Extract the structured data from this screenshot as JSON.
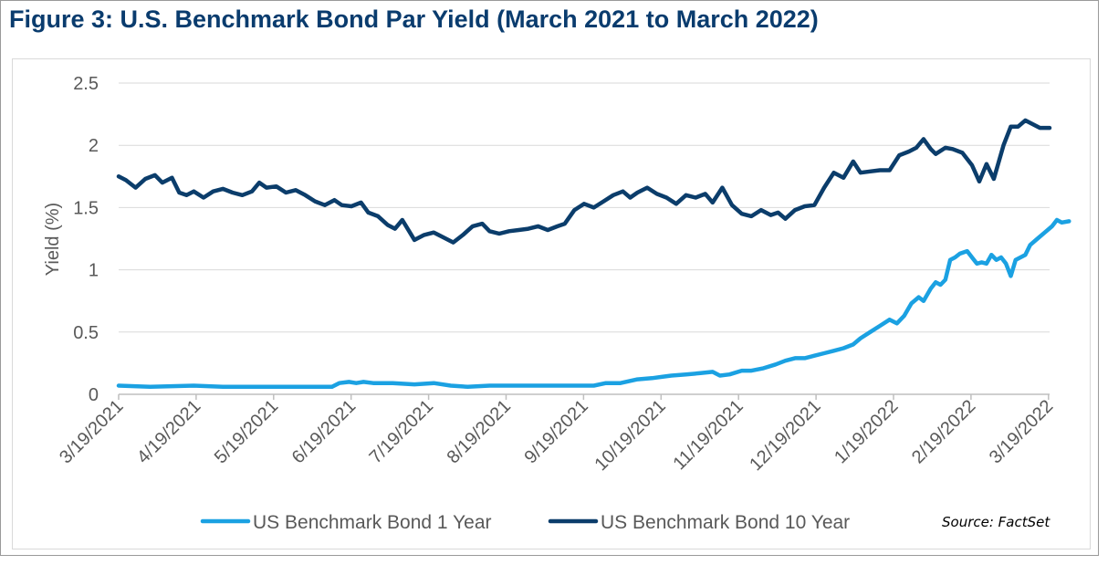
{
  "title": "Figure 3: U.S. Benchmark Bond Par Yield (March 2021 to March 2022)",
  "source": "Source: FactSet",
  "colors": {
    "title": "#0a3c6e",
    "series_1y": "#1ba1e2",
    "series_10y": "#0b3d6b",
    "axis_text": "#595959",
    "grid": "#d9d9d9"
  },
  "chart_data": {
    "type": "line",
    "ylabel": "Yield (%)",
    "xlabel": "",
    "ylim": [
      0,
      2.5
    ],
    "yticks": [
      "0",
      "0.5",
      "1",
      "1.5",
      "2",
      "2.5"
    ],
    "grid": true,
    "legend_position": "bottom",
    "x_ticks": [
      "3/19/2021",
      "4/19/2021",
      "5/19/2021",
      "6/19/2021",
      "7/19/2021",
      "8/19/2021",
      "9/19/2021",
      "10/19/2021",
      "11/19/2021",
      "12/19/2021",
      "1/19/2022",
      "2/19/2022",
      "3/19/2022"
    ],
    "series": [
      {
        "name": "US Benchmark Bond 1 Year",
        "points": [
          [
            "2021-03-19",
            0.07
          ],
          [
            "2021-04-01",
            0.06
          ],
          [
            "2021-04-19",
            0.07
          ],
          [
            "2021-05-01",
            0.06
          ],
          [
            "2021-05-19",
            0.06
          ],
          [
            "2021-06-01",
            0.06
          ],
          [
            "2021-06-15",
            0.06
          ],
          [
            "2021-06-18",
            0.09
          ],
          [
            "2021-06-22",
            0.1
          ],
          [
            "2021-06-25",
            0.09
          ],
          [
            "2021-06-28",
            0.1
          ],
          [
            "2021-07-02",
            0.09
          ],
          [
            "2021-07-10",
            0.09
          ],
          [
            "2021-07-19",
            0.08
          ],
          [
            "2021-07-27",
            0.09
          ],
          [
            "2021-08-03",
            0.07
          ],
          [
            "2021-08-10",
            0.06
          ],
          [
            "2021-08-19",
            0.07
          ],
          [
            "2021-09-01",
            0.07
          ],
          [
            "2021-09-19",
            0.07
          ],
          [
            "2021-10-01",
            0.07
          ],
          [
            "2021-10-06",
            0.09
          ],
          [
            "2021-10-12",
            0.09
          ],
          [
            "2021-10-19",
            0.12
          ],
          [
            "2021-10-25",
            0.13
          ],
          [
            "2021-10-29",
            0.14
          ],
          [
            "2021-11-02",
            0.15
          ],
          [
            "2021-11-08",
            0.16
          ],
          [
            "2021-11-14",
            0.17
          ],
          [
            "2021-11-19",
            0.18
          ],
          [
            "2021-11-22",
            0.15
          ],
          [
            "2021-11-26",
            0.16
          ],
          [
            "2021-12-01",
            0.19
          ],
          [
            "2021-12-05",
            0.19
          ],
          [
            "2021-12-10",
            0.21
          ],
          [
            "2021-12-15",
            0.24
          ],
          [
            "2021-12-19",
            0.27
          ],
          [
            "2021-12-23",
            0.29
          ],
          [
            "2021-12-27",
            0.29
          ],
          [
            "2021-12-31",
            0.31
          ],
          [
            "2022-01-04",
            0.33
          ],
          [
            "2022-01-08",
            0.35
          ],
          [
            "2022-01-12",
            0.37
          ],
          [
            "2022-01-16",
            0.4
          ],
          [
            "2022-01-19",
            0.45
          ],
          [
            "2022-01-23",
            0.5
          ],
          [
            "2022-01-27",
            0.55
          ],
          [
            "2022-01-31",
            0.6
          ],
          [
            "2022-02-03",
            0.57
          ],
          [
            "2022-02-06",
            0.63
          ],
          [
            "2022-02-09",
            0.73
          ],
          [
            "2022-02-12",
            0.78
          ],
          [
            "2022-02-14",
            0.75
          ],
          [
            "2022-02-17",
            0.85
          ],
          [
            "2022-02-19",
            0.9
          ],
          [
            "2022-02-21",
            0.88
          ],
          [
            "2022-02-23",
            0.92
          ],
          [
            "2022-02-25",
            1.08
          ],
          [
            "2022-02-27",
            1.1
          ],
          [
            "2022-03-01",
            1.13
          ],
          [
            "2022-03-04",
            1.15
          ],
          [
            "2022-03-06",
            1.1
          ],
          [
            "2022-03-08",
            1.05
          ],
          [
            "2022-03-10",
            1.06
          ],
          [
            "2022-03-12",
            1.05
          ],
          [
            "2022-03-14",
            1.12
          ],
          [
            "2022-03-16",
            1.08
          ],
          [
            "2022-03-18",
            1.1
          ],
          [
            "2022-03-20",
            1.05
          ],
          [
            "2022-03-22",
            0.95
          ],
          [
            "2022-03-24",
            1.08
          ],
          [
            "2022-03-26",
            1.1
          ],
          [
            "2022-03-28",
            1.12
          ],
          [
            "2022-03-30",
            1.2
          ],
          [
            "2022-04-02",
            1.25
          ],
          [
            "2022-04-05",
            1.3
          ],
          [
            "2022-04-08",
            1.35
          ],
          [
            "2022-04-10",
            1.4
          ],
          [
            "2022-04-12",
            1.38
          ],
          [
            "2022-04-15",
            1.39
          ]
        ]
      },
      {
        "name": "US Benchmark Bond 10 Year",
        "points": [
          [
            "2021-03-19",
            1.75
          ],
          [
            "2021-03-22",
            1.72
          ],
          [
            "2021-03-26",
            1.66
          ],
          [
            "2021-03-30",
            1.73
          ],
          [
            "2021-04-03",
            1.76
          ],
          [
            "2021-04-06",
            1.7
          ],
          [
            "2021-04-10",
            1.74
          ],
          [
            "2021-04-13",
            1.62
          ],
          [
            "2021-04-16",
            1.6
          ],
          [
            "2021-04-19",
            1.63
          ],
          [
            "2021-04-23",
            1.58
          ],
          [
            "2021-04-27",
            1.63
          ],
          [
            "2021-05-01",
            1.65
          ],
          [
            "2021-05-05",
            1.62
          ],
          [
            "2021-05-09",
            1.6
          ],
          [
            "2021-05-13",
            1.63
          ],
          [
            "2021-05-16",
            1.7
          ],
          [
            "2021-05-19",
            1.66
          ],
          [
            "2021-05-23",
            1.67
          ],
          [
            "2021-05-27",
            1.62
          ],
          [
            "2021-05-31",
            1.64
          ],
          [
            "2021-06-04",
            1.6
          ],
          [
            "2021-06-08",
            1.55
          ],
          [
            "2021-06-12",
            1.52
          ],
          [
            "2021-06-16",
            1.56
          ],
          [
            "2021-06-19",
            1.52
          ],
          [
            "2021-06-23",
            1.51
          ],
          [
            "2021-06-27",
            1.54
          ],
          [
            "2021-06-30",
            1.46
          ],
          [
            "2021-07-04",
            1.43
          ],
          [
            "2021-07-08",
            1.36
          ],
          [
            "2021-07-11",
            1.33
          ],
          [
            "2021-07-14",
            1.4
          ],
          [
            "2021-07-19",
            1.24
          ],
          [
            "2021-07-23",
            1.28
          ],
          [
            "2021-07-27",
            1.3
          ],
          [
            "2021-07-31",
            1.26
          ],
          [
            "2021-08-04",
            1.22
          ],
          [
            "2021-08-08",
            1.28
          ],
          [
            "2021-08-12",
            1.35
          ],
          [
            "2021-08-16",
            1.37
          ],
          [
            "2021-08-19",
            1.31
          ],
          [
            "2021-08-23",
            1.29
          ],
          [
            "2021-08-27",
            1.31
          ],
          [
            "2021-08-31",
            1.32
          ],
          [
            "2021-09-04",
            1.33
          ],
          [
            "2021-09-08",
            1.35
          ],
          [
            "2021-09-12",
            1.32
          ],
          [
            "2021-09-16",
            1.35
          ],
          [
            "2021-09-19",
            1.37
          ],
          [
            "2021-09-23",
            1.48
          ],
          [
            "2021-09-27",
            1.53
          ],
          [
            "2021-10-01",
            1.5
          ],
          [
            "2021-10-05",
            1.55
          ],
          [
            "2021-10-09",
            1.6
          ],
          [
            "2021-10-13",
            1.63
          ],
          [
            "2021-10-16",
            1.58
          ],
          [
            "2021-10-19",
            1.62
          ],
          [
            "2021-10-23",
            1.66
          ],
          [
            "2021-10-27",
            1.61
          ],
          [
            "2021-10-31",
            1.58
          ],
          [
            "2021-11-04",
            1.53
          ],
          [
            "2021-11-08",
            1.6
          ],
          [
            "2021-11-12",
            1.58
          ],
          [
            "2021-11-16",
            1.61
          ],
          [
            "2021-11-19",
            1.54
          ],
          [
            "2021-11-23",
            1.66
          ],
          [
            "2021-11-27",
            1.52
          ],
          [
            "2021-12-01",
            1.45
          ],
          [
            "2021-12-05",
            1.43
          ],
          [
            "2021-12-09",
            1.48
          ],
          [
            "2021-12-13",
            1.44
          ],
          [
            "2021-12-16",
            1.46
          ],
          [
            "2021-12-19",
            1.41
          ],
          [
            "2021-12-23",
            1.48
          ],
          [
            "2021-12-27",
            1.51
          ],
          [
            "2021-12-31",
            1.52
          ],
          [
            "2022-01-04",
            1.66
          ],
          [
            "2022-01-08",
            1.78
          ],
          [
            "2022-01-12",
            1.74
          ],
          [
            "2022-01-16",
            1.87
          ],
          [
            "2022-01-19",
            1.78
          ],
          [
            "2022-01-23",
            1.79
          ],
          [
            "2022-01-27",
            1.8
          ],
          [
            "2022-01-31",
            1.8
          ],
          [
            "2022-02-04",
            1.92
          ],
          [
            "2022-02-08",
            1.95
          ],
          [
            "2022-02-11",
            1.98
          ],
          [
            "2022-02-14",
            2.05
          ],
          [
            "2022-02-17",
            1.97
          ],
          [
            "2022-02-19",
            1.93
          ],
          [
            "2022-02-23",
            1.98
          ],
          [
            "2022-02-26",
            1.97
          ],
          [
            "2022-03-02",
            1.94
          ],
          [
            "2022-03-06",
            1.84
          ],
          [
            "2022-03-09",
            1.71
          ],
          [
            "2022-03-12",
            1.85
          ],
          [
            "2022-03-15",
            1.73
          ],
          [
            "2022-03-19",
            2.0
          ],
          [
            "2022-03-22",
            2.15
          ],
          [
            "2022-03-25",
            2.15
          ],
          [
            "2022-03-28",
            2.2
          ],
          [
            "2022-03-31",
            2.17
          ],
          [
            "2022-04-03",
            2.14
          ],
          [
            "2022-04-07",
            2.14
          ]
        ]
      }
    ]
  }
}
